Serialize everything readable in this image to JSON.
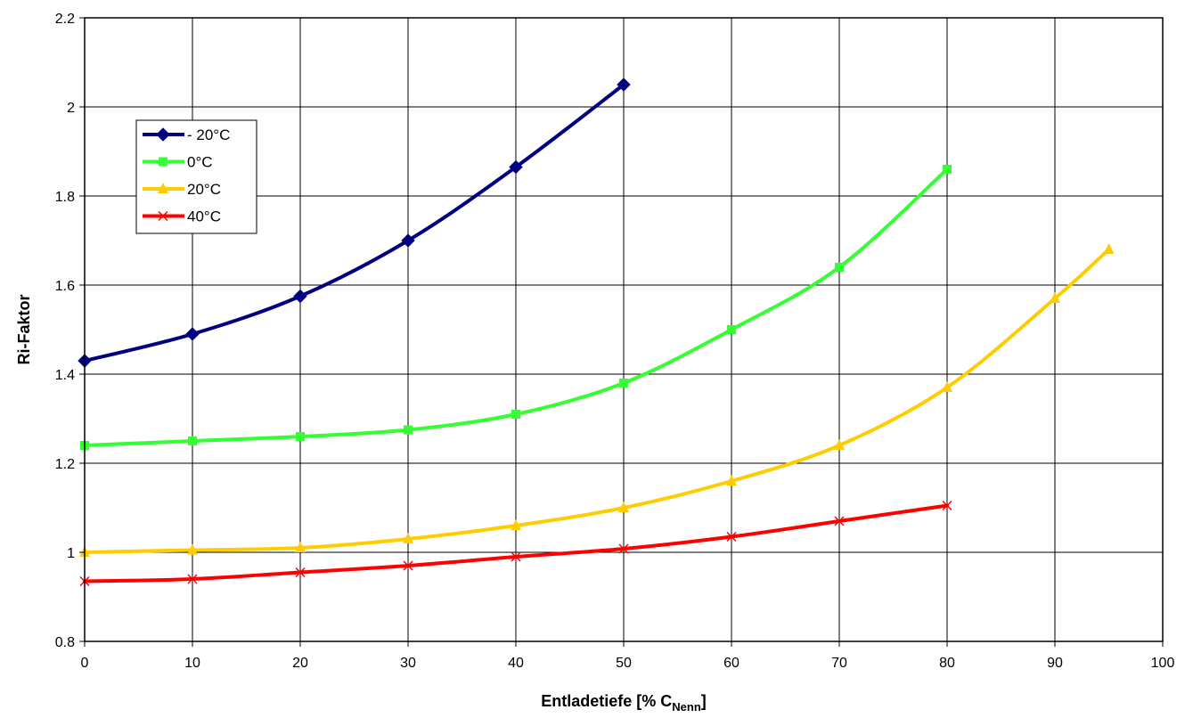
{
  "chart_data": {
    "type": "line",
    "title": "",
    "xlabel": "Entladetiefe [% C",
    "xlabel_subscript": "Nenn",
    "xlabel_suffix": "]",
    "ylabel": "Ri-Faktor",
    "xlim": [
      0,
      100
    ],
    "ylim": [
      0.8,
      2.2
    ],
    "xticks": [
      0,
      10,
      20,
      30,
      40,
      50,
      60,
      70,
      80,
      90,
      100
    ],
    "xtick_labels": [
      "0",
      "10",
      "20",
      "30",
      "40",
      "50",
      "60",
      "70",
      "80",
      "90",
      "100"
    ],
    "yticks": [
      0.8,
      1.0,
      1.2,
      1.4,
      1.6,
      1.8,
      2.0,
      2.2
    ],
    "ytick_labels": [
      "0.8",
      "1",
      "1.2",
      "1.4",
      "1.6",
      "1.8",
      "2",
      "2.2"
    ],
    "grid": true,
    "legend_position": "top-left",
    "series": [
      {
        "name": "- 20°C",
        "color": "#000080",
        "marker": "diamond",
        "x": [
          0,
          10,
          20,
          30,
          40,
          50
        ],
        "y": [
          1.43,
          1.49,
          1.575,
          1.7,
          1.865,
          2.05
        ]
      },
      {
        "name": "0°C",
        "color": "#33ff33",
        "marker": "square",
        "x": [
          0,
          10,
          20,
          30,
          40,
          50,
          60,
          70,
          80
        ],
        "y": [
          1.24,
          1.25,
          1.26,
          1.275,
          1.31,
          1.38,
          1.5,
          1.64,
          1.86
        ]
      },
      {
        "name": "20°C",
        "color": "#ffcc00",
        "marker": "triangle",
        "x": [
          0,
          10,
          20,
          30,
          40,
          50,
          60,
          70,
          80,
          90,
          95
        ],
        "y": [
          1.0,
          1.005,
          1.01,
          1.03,
          1.06,
          1.1,
          1.16,
          1.24,
          1.37,
          1.57,
          1.68
        ]
      },
      {
        "name": "40°C",
        "color": "#ff0000",
        "marker": "x",
        "x": [
          0,
          10,
          20,
          30,
          40,
          50,
          60,
          70,
          80
        ],
        "y": [
          0.935,
          0.94,
          0.955,
          0.97,
          0.99,
          1.008,
          1.035,
          1.07,
          1.105
        ]
      }
    ]
  }
}
